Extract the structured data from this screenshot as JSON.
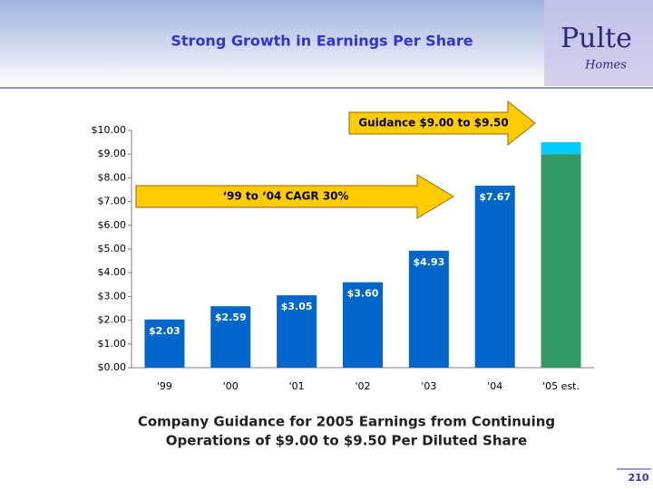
{
  "header": {
    "logo": "Pulte",
    "logo_sub": "Homes"
  },
  "chart_data": {
    "type": "bar",
    "stacked": true,
    "title": "Strong Growth in Earnings Per Share",
    "categories": [
      "'99",
      "'00",
      "'01",
      "'02",
      "'03",
      "'04",
      "'05 est."
    ],
    "series": [
      {
        "color": "#0066cc",
        "values": [
          2.03,
          2.59,
          3.05,
          3.6,
          4.93,
          7.67,
          null
        ],
        "value_labels": [
          "$2.03",
          "$2.59",
          "$3.05",
          "$3.60",
          "$4.93",
          "$7.67",
          null
        ]
      },
      {
        "color": "#339966",
        "values": [
          null,
          null,
          null,
          null,
          null,
          null,
          9.0
        ]
      },
      {
        "color": "#00ccff",
        "values": [
          null,
          null,
          null,
          null,
          null,
          null,
          0.5
        ]
      }
    ],
    "ylim": [
      0,
      10
    ],
    "yticks": [
      {
        "value": 0,
        "label": "$0.00"
      },
      {
        "value": 1,
        "label": "$1.00"
      },
      {
        "value": 2,
        "label": "$2.00"
      },
      {
        "value": 3,
        "label": "$3.00"
      },
      {
        "value": 4,
        "label": "$4.00"
      },
      {
        "value": 5,
        "label": "$5.00"
      },
      {
        "value": 6,
        "label": "$6.00"
      },
      {
        "value": 7,
        "label": "$7.00"
      },
      {
        "value": 8,
        "label": "$8.00"
      },
      {
        "value": 9,
        "label": "$9.00"
      },
      {
        "value": 10,
        "label": "$10.00"
      }
    ],
    "grid": false,
    "annotations": [
      "Guidance $9.00 to $9.50",
      "‘99 to ‘04 CAGR 30%"
    ],
    "subtitle": [
      "Company Guidance for 2005 Earnings from Continuing",
      "Operations of $9.00 to $9.50 Per Diluted Share"
    ]
  },
  "footer": {
    "page": "210"
  }
}
